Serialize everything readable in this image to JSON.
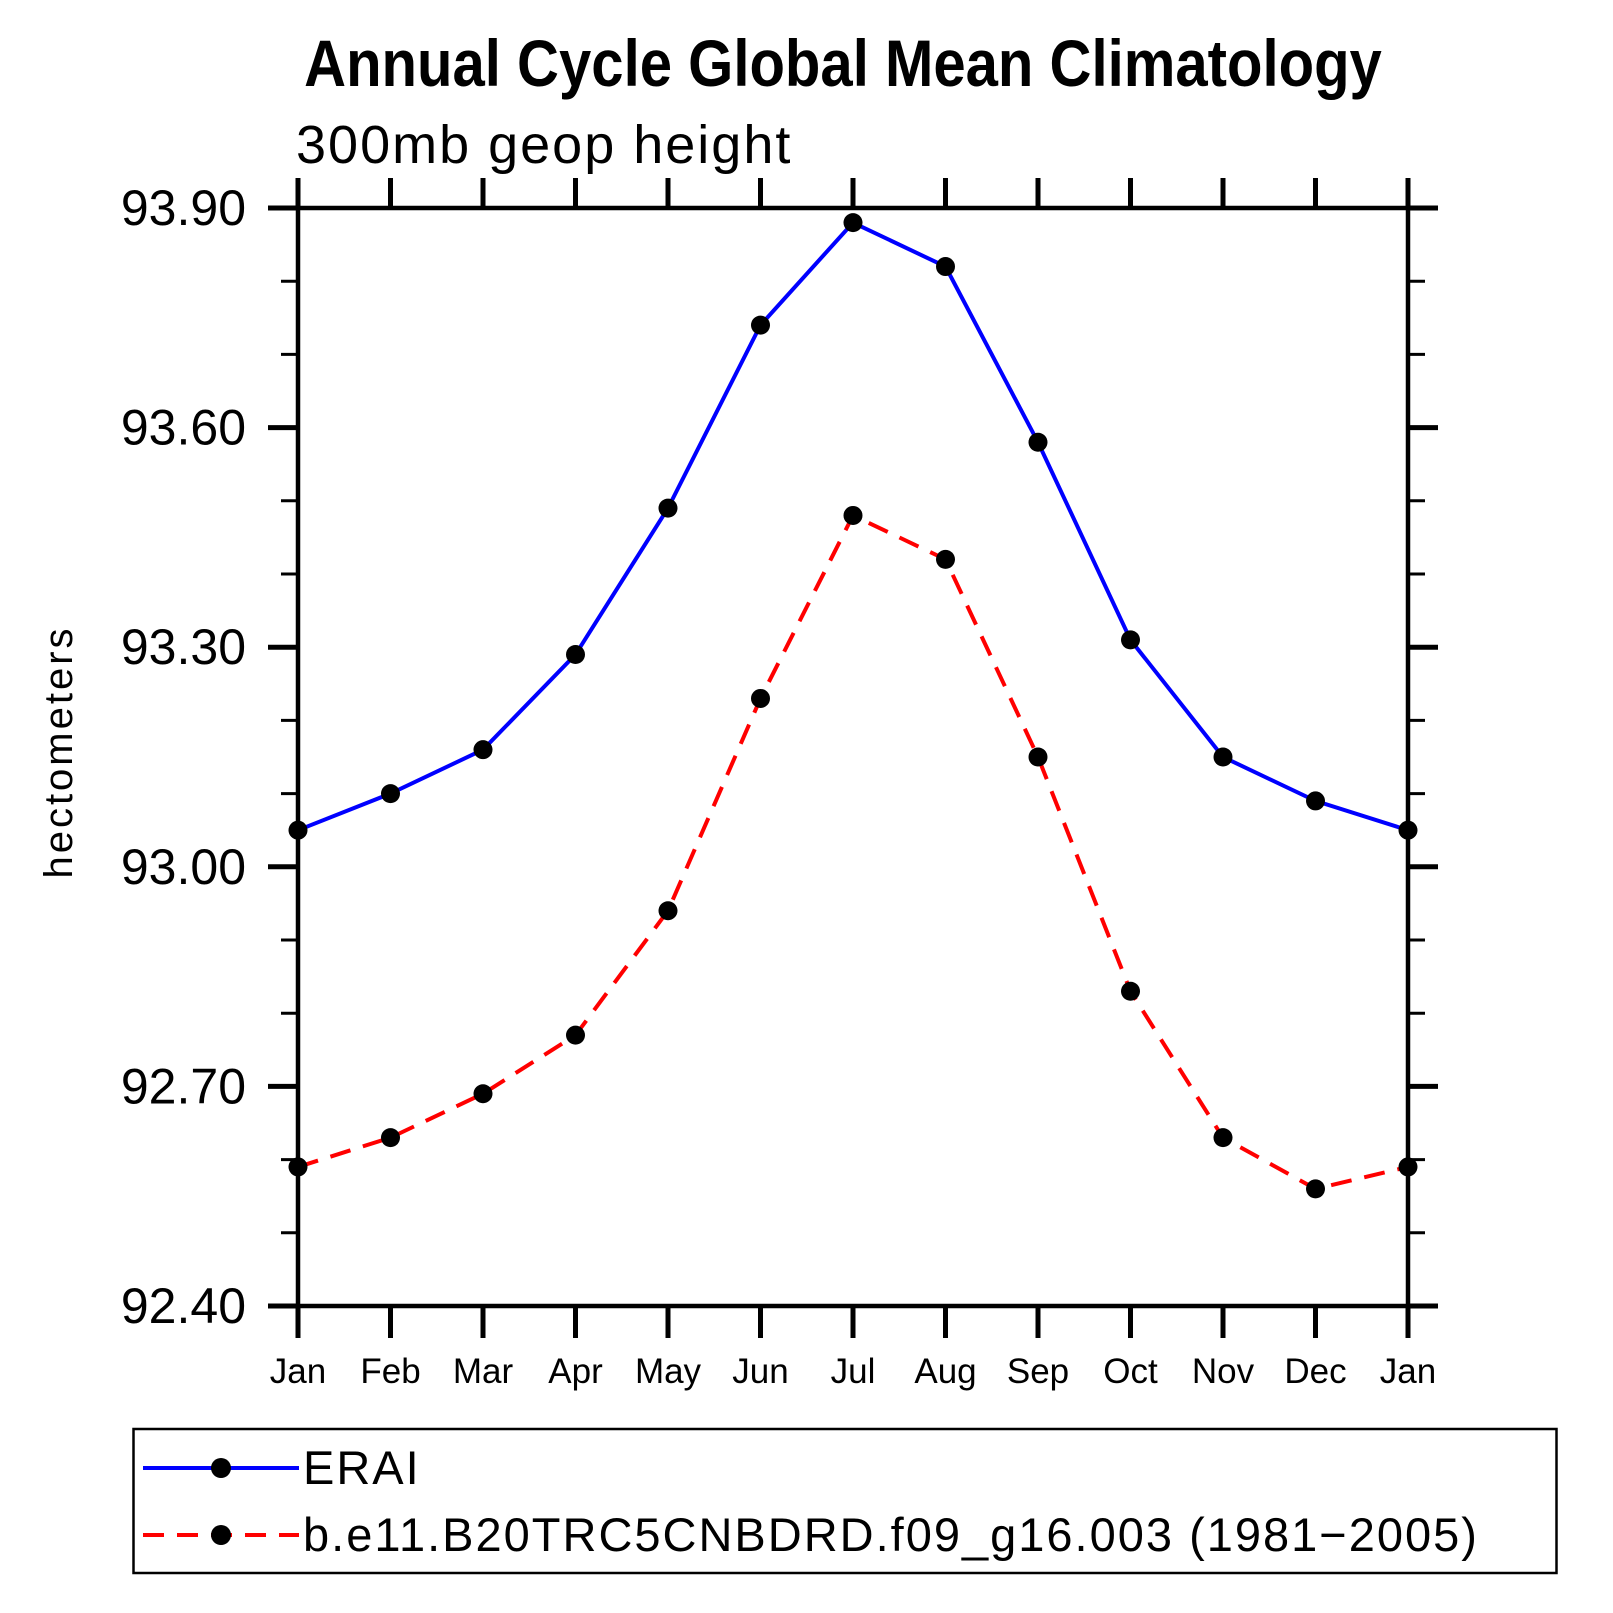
{
  "chart_data": {
    "type": "line",
    "title": "Annual Cycle Global Mean Climatology",
    "subtitle": "300mb geop height",
    "ylabel": "hectometers",
    "xlabel": "",
    "categories": [
      "Jan",
      "Feb",
      "Mar",
      "Apr",
      "May",
      "Jun",
      "Jul",
      "Aug",
      "Sep",
      "Oct",
      "Nov",
      "Dec",
      "Jan"
    ],
    "ylim": [
      92.4,
      93.9
    ],
    "y_tick_labels": [
      "93.90",
      "93.60",
      "93.30",
      "93.00",
      "92.70",
      "92.40"
    ],
    "y_minor_step": 0.1,
    "grid": false,
    "legend_position": "bottom-left-box",
    "series": [
      {
        "name": "ERAI",
        "color": "#0000ff",
        "line_style": "solid",
        "marker": "filled-circle",
        "marker_color": "#000000",
        "values": [
          93.05,
          93.1,
          93.16,
          93.29,
          93.49,
          93.74,
          93.88,
          93.82,
          93.58,
          93.31,
          93.15,
          93.09,
          93.05
        ]
      },
      {
        "name": "b.e11.B20TRC5CNBDRD.f09_g16.003 (1981−2005)",
        "color": "#ff0000",
        "line_style": "dashed",
        "marker": "filled-circle",
        "marker_color": "#000000",
        "values": [
          92.59,
          92.63,
          92.69,
          92.77,
          92.94,
          93.23,
          93.48,
          93.42,
          93.15,
          92.83,
          92.63,
          92.56,
          92.59
        ]
      }
    ],
    "axis_color": "#000000",
    "background_color": "#ffffff"
  }
}
